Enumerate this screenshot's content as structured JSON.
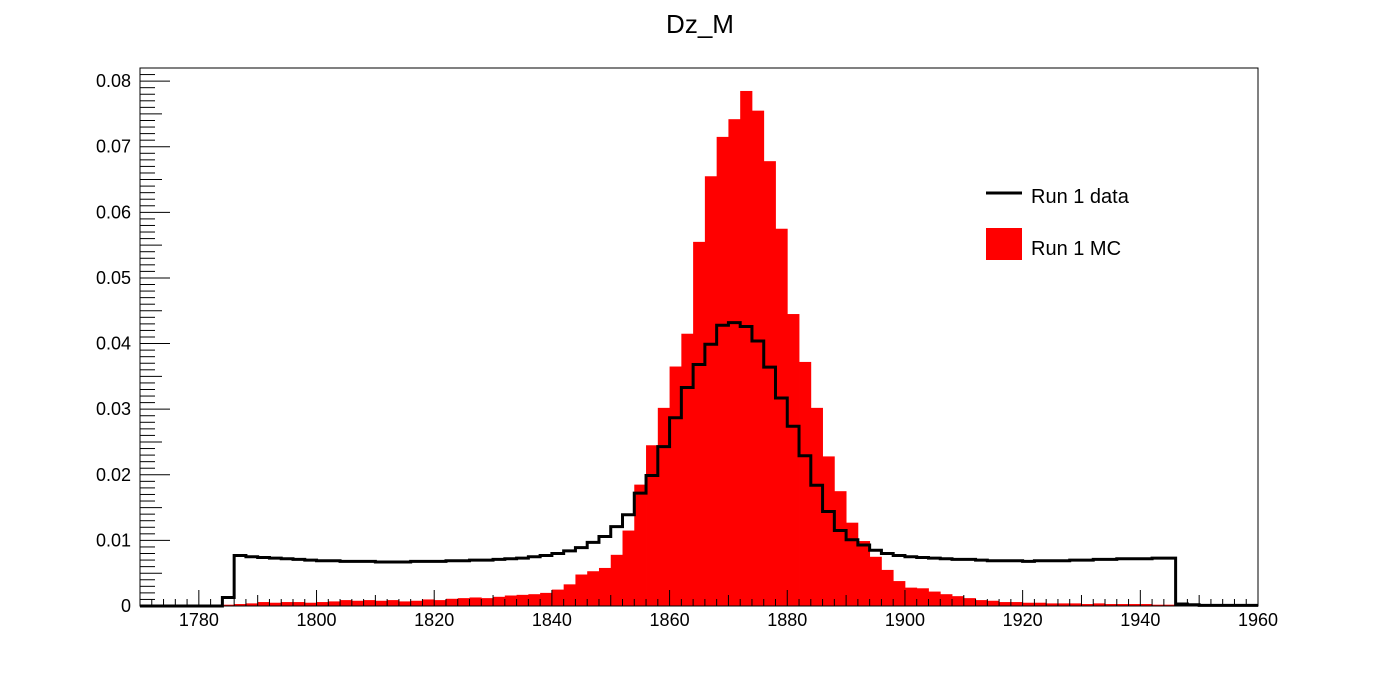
{
  "chart_data": {
    "type": "bar",
    "title": "Dz_M",
    "xlabel": "",
    "ylabel": "",
    "xlim": [
      1770,
      1960
    ],
    "ylim": [
      0,
      0.082
    ],
    "bin_width": 2,
    "grid": false,
    "legend_placement": "top-right",
    "x_ticks": [
      1780,
      1800,
      1820,
      1840,
      1860,
      1880,
      1900,
      1920,
      1940,
      1960
    ],
    "x_tick_labels": [
      "1780",
      "1800",
      "1820",
      "1840",
      "1860",
      "1880",
      "1900",
      "1920",
      "1940",
      "1960"
    ],
    "y_ticks": [
      0,
      0.01,
      0.02,
      0.03,
      0.04,
      0.05,
      0.06,
      0.07,
      0.08
    ],
    "y_tick_labels": [
      "0",
      "0.01",
      "0.02",
      "0.03",
      "0.04",
      "0.05",
      "0.06",
      "0.07",
      "0.08"
    ],
    "series": [
      {
        "name": "Run 1 MC",
        "style": "filled",
        "color": "#ff0000",
        "x": [
          1784,
          1786,
          1788,
          1790,
          1792,
          1794,
          1796,
          1798,
          1800,
          1802,
          1804,
          1806,
          1808,
          1810,
          1812,
          1814,
          1816,
          1818,
          1820,
          1822,
          1824,
          1826,
          1828,
          1830,
          1832,
          1834,
          1836,
          1838,
          1840,
          1842,
          1844,
          1846,
          1848,
          1850,
          1852,
          1854,
          1856,
          1858,
          1860,
          1862,
          1864,
          1866,
          1868,
          1870,
          1872,
          1874,
          1876,
          1878,
          1880,
          1882,
          1884,
          1886,
          1888,
          1890,
          1892,
          1894,
          1896,
          1898,
          1900,
          1902,
          1904,
          1906,
          1908,
          1910,
          1912,
          1914,
          1916,
          1918,
          1920,
          1922,
          1924,
          1926,
          1928,
          1930,
          1932,
          1934,
          1936,
          1938,
          1940,
          1942,
          1944
        ],
        "values": [
          0.0002,
          0.0003,
          0.0004,
          0.0006,
          0.0005,
          0.0006,
          0.0006,
          0.0005,
          0.0006,
          0.0007,
          0.0009,
          0.0008,
          0.0009,
          0.0008,
          0.0009,
          0.0007,
          0.0008,
          0.001,
          0.0009,
          0.0011,
          0.0012,
          0.0013,
          0.0012,
          0.0014,
          0.0016,
          0.0017,
          0.0018,
          0.002,
          0.0025,
          0.0033,
          0.0048,
          0.0053,
          0.0058,
          0.0078,
          0.0115,
          0.0185,
          0.0245,
          0.0302,
          0.0365,
          0.0415,
          0.0555,
          0.0655,
          0.0715,
          0.0742,
          0.0785,
          0.0755,
          0.0678,
          0.0575,
          0.0445,
          0.0372,
          0.0302,
          0.0228,
          0.0175,
          0.0127,
          0.0099,
          0.0075,
          0.0055,
          0.0038,
          0.0028,
          0.0027,
          0.0022,
          0.0018,
          0.0015,
          0.0012,
          0.0009,
          0.0008,
          0.0006,
          0.0006,
          0.0005,
          0.0005,
          0.0004,
          0.0004,
          0.0004,
          0.0003,
          0.0004,
          0.0003,
          0.0003,
          0.0003,
          0.0003,
          0.0002,
          0.0002
        ]
      },
      {
        "name": "Run 1 data",
        "style": "step",
        "color": "#000000",
        "x": [
          1770,
          1772,
          1774,
          1776,
          1778,
          1780,
          1782,
          1784,
          1786,
          1788,
          1790,
          1792,
          1794,
          1796,
          1798,
          1800,
          1802,
          1804,
          1806,
          1808,
          1810,
          1812,
          1814,
          1816,
          1818,
          1820,
          1822,
          1824,
          1826,
          1828,
          1830,
          1832,
          1834,
          1836,
          1838,
          1840,
          1842,
          1844,
          1846,
          1848,
          1850,
          1852,
          1854,
          1856,
          1858,
          1860,
          1862,
          1864,
          1866,
          1868,
          1870,
          1872,
          1874,
          1876,
          1878,
          1880,
          1882,
          1884,
          1886,
          1888,
          1890,
          1892,
          1894,
          1896,
          1898,
          1900,
          1902,
          1904,
          1906,
          1908,
          1910,
          1912,
          1914,
          1916,
          1918,
          1920,
          1922,
          1924,
          1926,
          1928,
          1930,
          1932,
          1934,
          1936,
          1938,
          1940,
          1942,
          1944,
          1946,
          1948,
          1950,
          1952,
          1954,
          1956,
          1958
        ],
        "values": [
          0,
          0,
          0,
          0,
          0,
          0,
          0,
          0.0013,
          0.0077,
          0.0075,
          0.0074,
          0.0073,
          0.0072,
          0.0071,
          0.007,
          0.0069,
          0.0069,
          0.0068,
          0.0068,
          0.0068,
          0.0067,
          0.0067,
          0.0067,
          0.0068,
          0.0068,
          0.0068,
          0.0069,
          0.0069,
          0.007,
          0.007,
          0.0071,
          0.0072,
          0.0073,
          0.0075,
          0.0077,
          0.008,
          0.0084,
          0.0089,
          0.0097,
          0.0106,
          0.0121,
          0.0139,
          0.0172,
          0.0199,
          0.0243,
          0.0287,
          0.0333,
          0.0368,
          0.0399,
          0.0428,
          0.0432,
          0.0426,
          0.0404,
          0.0364,
          0.0317,
          0.0274,
          0.0229,
          0.0184,
          0.0144,
          0.0115,
          0.0101,
          0.0093,
          0.0085,
          0.008,
          0.0077,
          0.0075,
          0.0074,
          0.0073,
          0.0072,
          0.0071,
          0.0071,
          0.007,
          0.0069,
          0.0069,
          0.0069,
          0.0068,
          0.0069,
          0.0069,
          0.0069,
          0.007,
          0.007,
          0.0071,
          0.0071,
          0.0072,
          0.0072,
          0.0072,
          0.0073,
          0.0073,
          0.0003,
          0.0002,
          0.0001,
          0.0001,
          0.0001,
          0.0001,
          0.0001
        ]
      }
    ]
  }
}
